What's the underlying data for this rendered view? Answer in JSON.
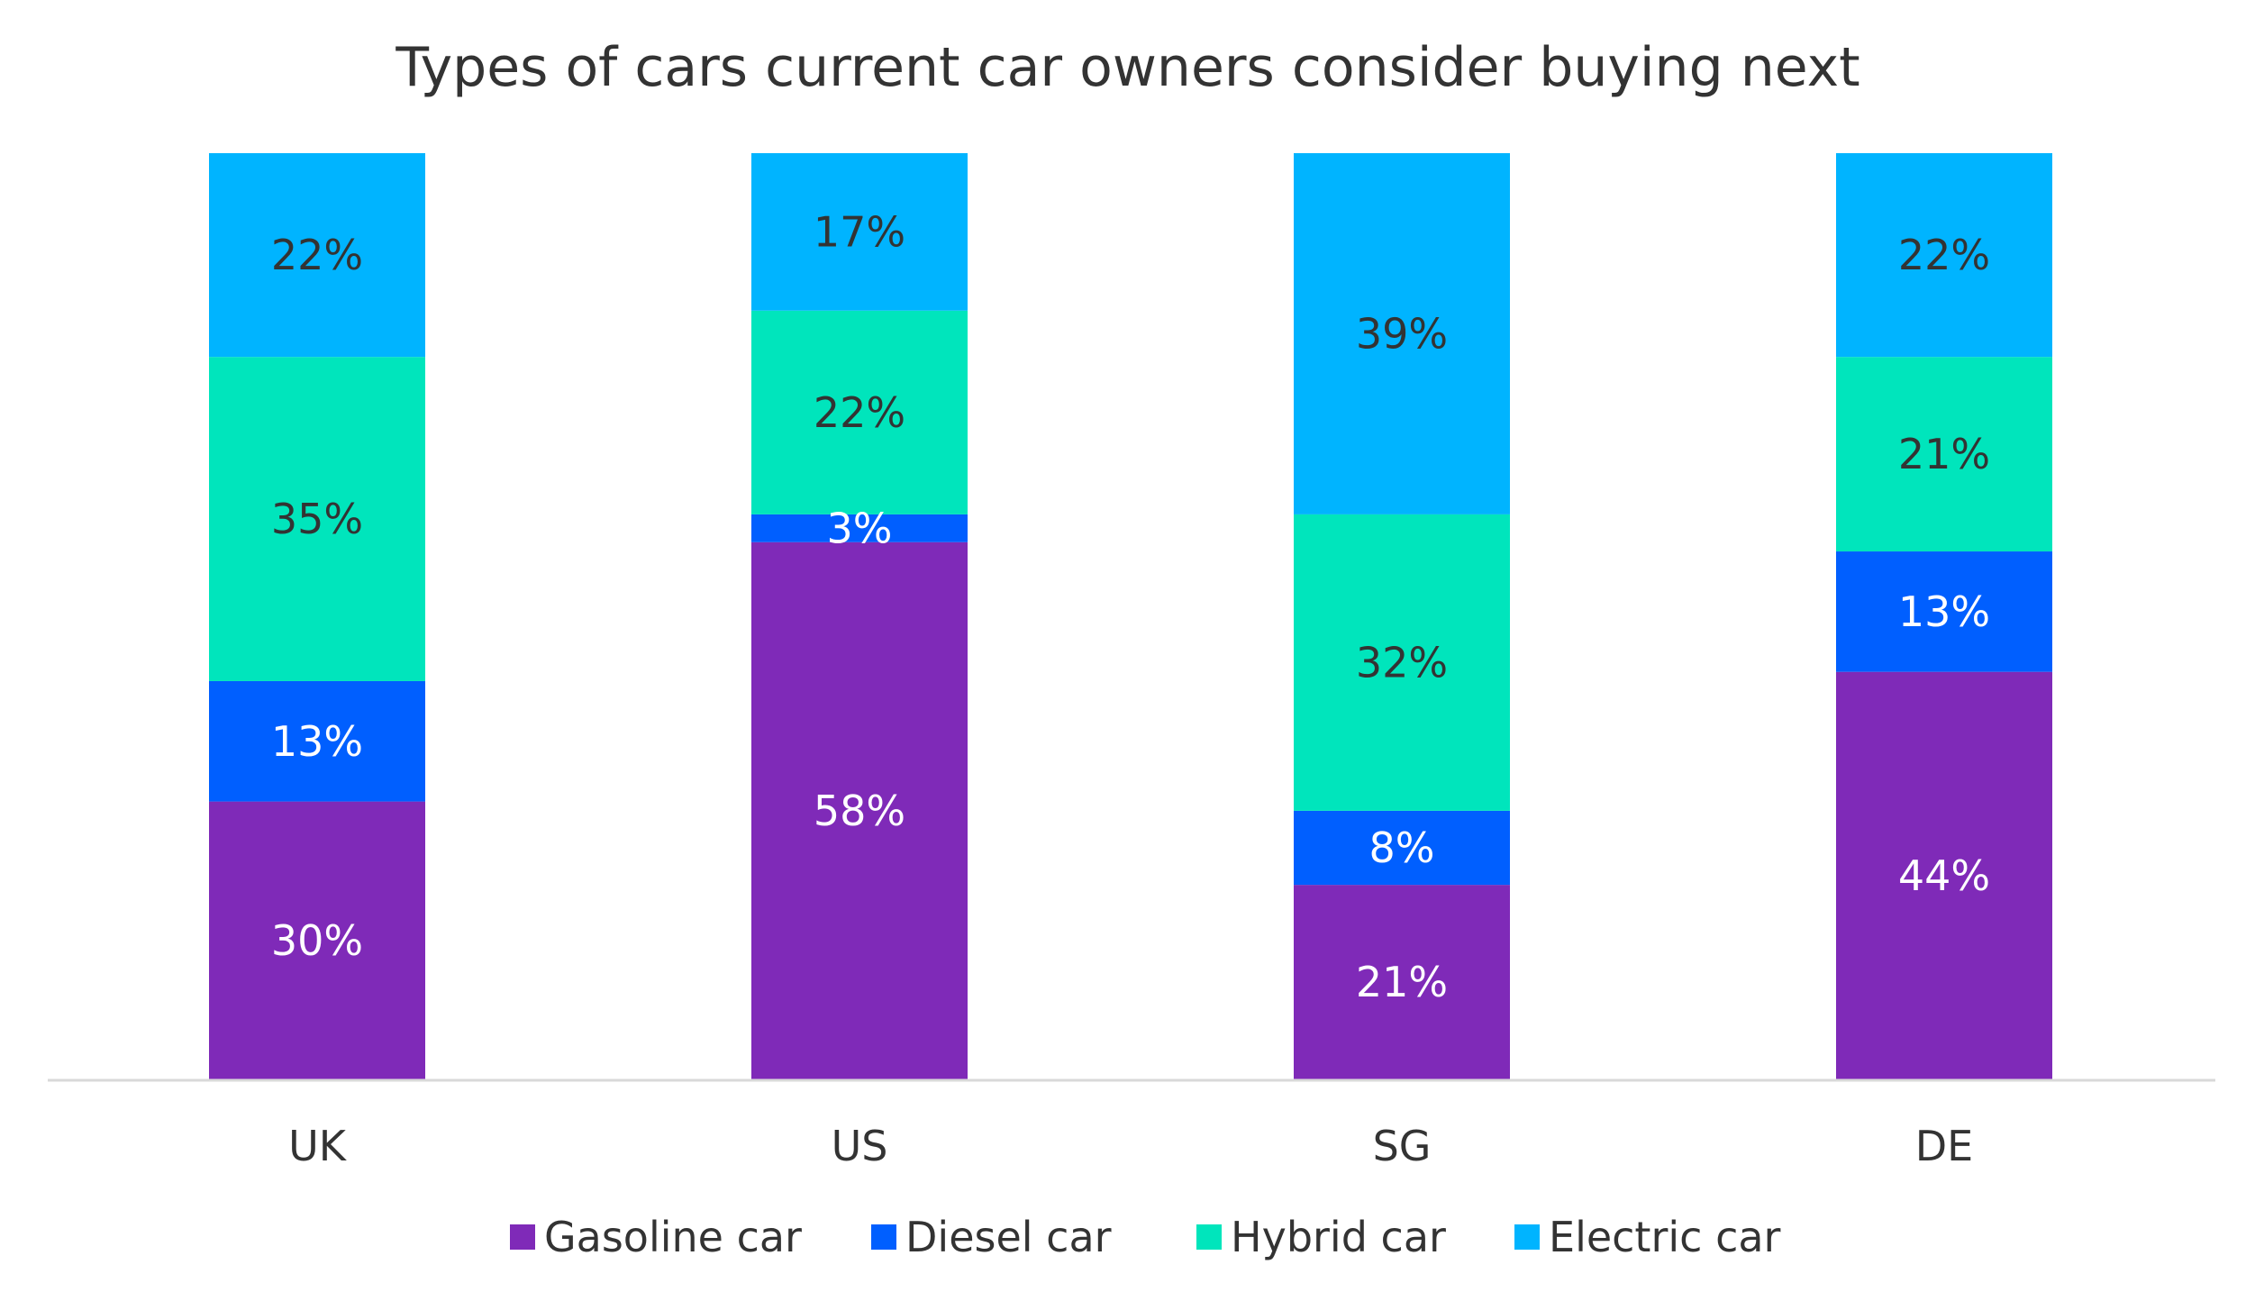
{
  "chart_data": {
    "type": "bar",
    "stacked": true,
    "title": "Types of cars current car owners consider buying next",
    "categories": [
      "UK",
      "US",
      "SG",
      "DE"
    ],
    "ylim": [
      0,
      100
    ],
    "unit": "%",
    "grid": false,
    "legend_position": "bottom",
    "series": [
      {
        "name": "Gasoline car",
        "color": "#7F2AB8",
        "label_color": "#FFFFFF",
        "values": [
          30,
          58,
          21,
          44
        ]
      },
      {
        "name": "Diesel car",
        "color": "#005FFF",
        "label_color": "#FFFFFF",
        "values": [
          13,
          3,
          8,
          13
        ]
      },
      {
        "name": "Hybrid car",
        "color": "#00E5BC",
        "label_color": "#333333",
        "values": [
          35,
          22,
          32,
          21
        ]
      },
      {
        "name": "Electric car",
        "color": "#00B4FF",
        "label_color": "#333333",
        "values": [
          22,
          17,
          39,
          22
        ]
      }
    ]
  }
}
